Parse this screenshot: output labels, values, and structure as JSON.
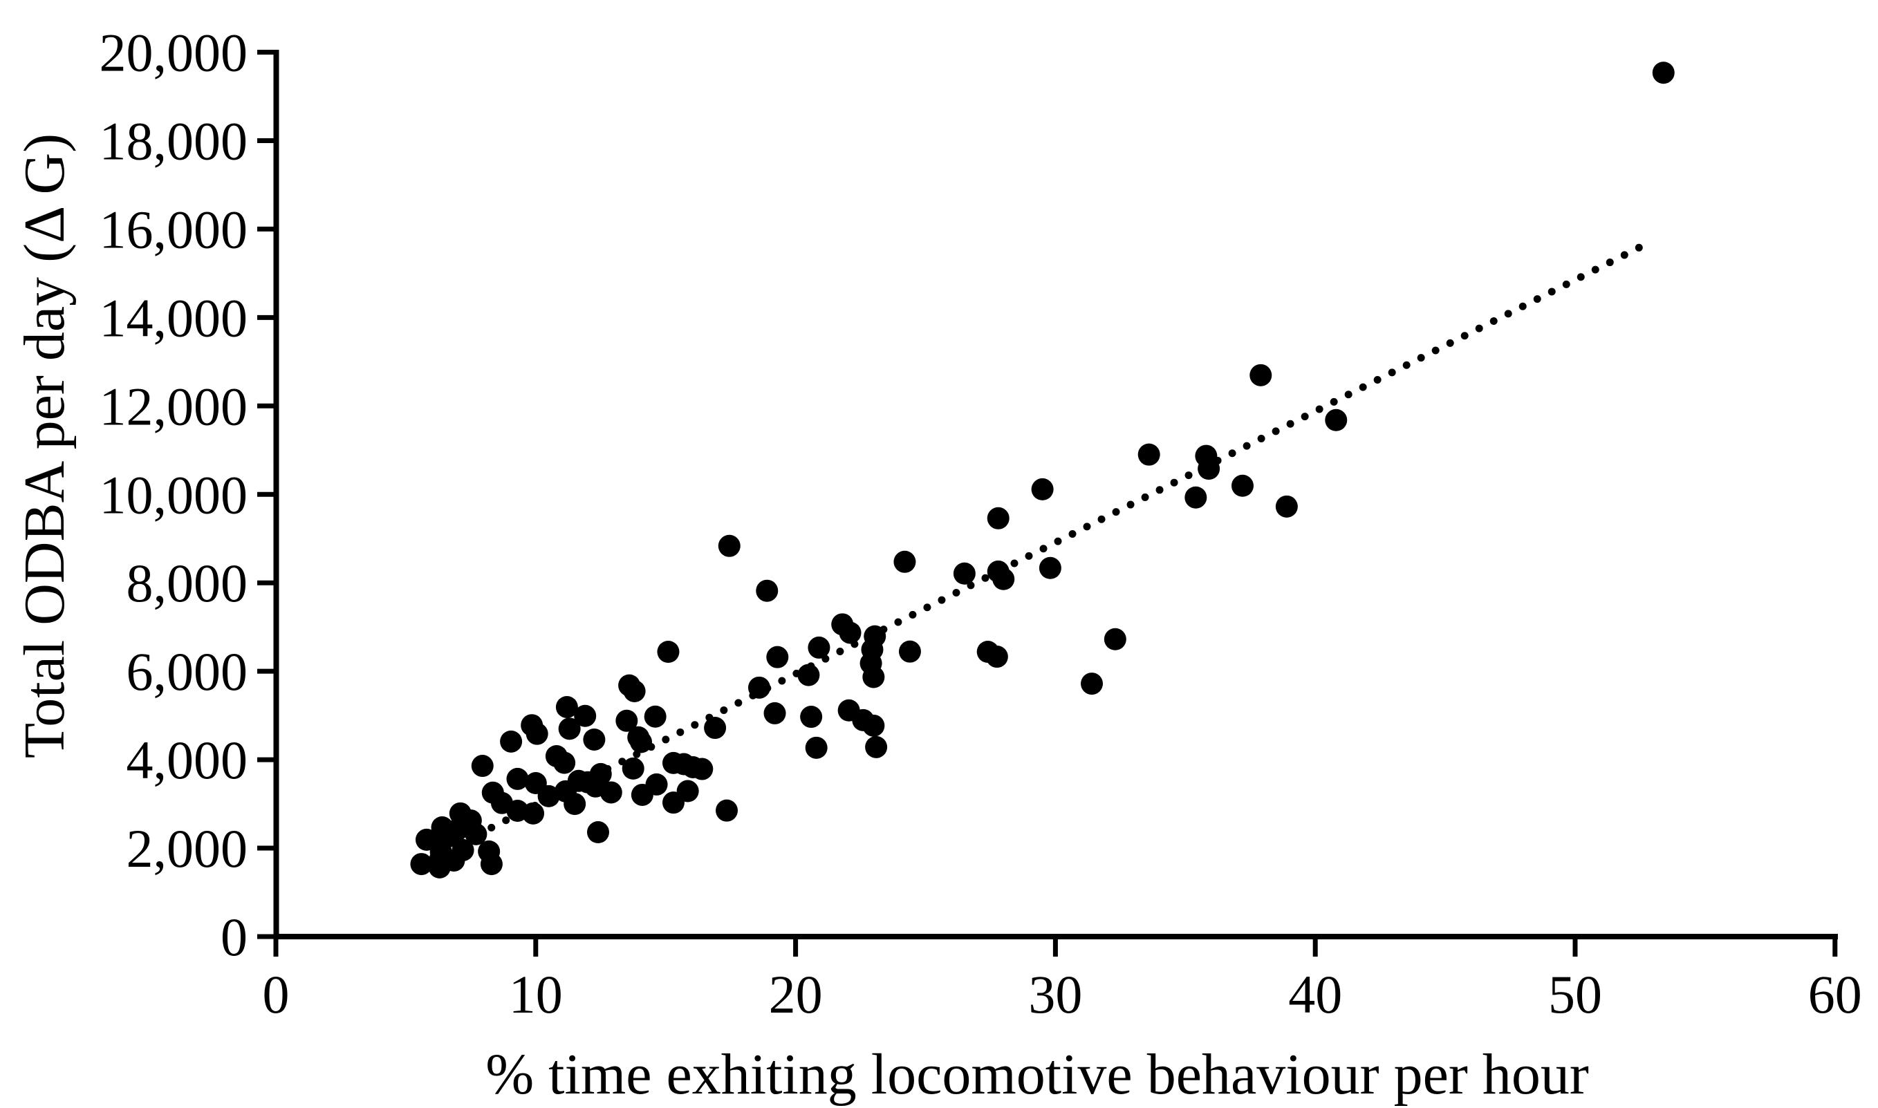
{
  "page": {
    "background_color": "#ffffff",
    "foreground_color": "#000000"
  },
  "chart_data": {
    "type": "scatter",
    "title": "",
    "xlabel": "% time exhiting locomotive behaviour per hour",
    "ylabel": "Total ODBA per day (Δ G)",
    "xlim": [
      0,
      60
    ],
    "ylim": [
      0,
      20000
    ],
    "grid": false,
    "legend": false,
    "x_ticks": [
      0,
      10,
      20,
      30,
      40,
      50,
      60
    ],
    "x_tick_labels": [
      "0",
      "10",
      "20",
      "30",
      "40",
      "50",
      "60"
    ],
    "y_ticks": [
      0,
      2000,
      4000,
      6000,
      8000,
      10000,
      12000,
      14000,
      16000,
      18000,
      20000
    ],
    "y_tick_labels": [
      "0",
      "2,000",
      "4,000",
      "6,000",
      "8,000",
      "10,000",
      "12,000",
      "14,000",
      "16,000",
      "18,000",
      "20,000"
    ],
    "marker": {
      "shape": "circle",
      "color": "#000000",
      "radius_px": 16
    },
    "trendline": {
      "style": "dotted",
      "color": "#000000",
      "slope": 297,
      "intercept": 0,
      "x_start": 5.5,
      "x_end": 52.75,
      "dot_radius_px": 5.5,
      "dot_spacing_x_units": 0.559
    },
    "points": [
      [
        5.6,
        1640
      ],
      [
        5.8,
        2190
      ],
      [
        6.3,
        1565
      ],
      [
        6.35,
        1910
      ],
      [
        6.4,
        2470
      ],
      [
        6.6,
        2255
      ],
      [
        6.85,
        1720
      ],
      [
        7.0,
        2425
      ],
      [
        7.2,
        1955
      ],
      [
        7.1,
        2785
      ],
      [
        7.5,
        2625
      ],
      [
        7.7,
        2315
      ],
      [
        7.95,
        3860
      ],
      [
        8.2,
        1925
      ],
      [
        8.3,
        1640
      ],
      [
        8.35,
        3255
      ],
      [
        8.7,
        3020
      ],
      [
        9.05,
        4410
      ],
      [
        9.3,
        2845
      ],
      [
        9.9,
        2785
      ],
      [
        9.3,
        3565
      ],
      [
        9.85,
        4780
      ],
      [
        10.05,
        4585
      ],
      [
        10.0,
        3470
      ],
      [
        10.5,
        3175
      ],
      [
        10.8,
        4080
      ],
      [
        11.1,
        3930
      ],
      [
        11.2,
        5190
      ],
      [
        11.9,
        4990
      ],
      [
        11.3,
        4700
      ],
      [
        12.25,
        4455
      ],
      [
        11.5,
        3000
      ],
      [
        11.15,
        3285
      ],
      [
        11.65,
        3520
      ],
      [
        12.0,
        3490
      ],
      [
        12.3,
        3395
      ],
      [
        12.5,
        3675
      ],
      [
        12.9,
        3260
      ],
      [
        12.4,
        2360
      ],
      [
        13.5,
        4880
      ],
      [
        13.6,
        5680
      ],
      [
        13.8,
        5550
      ],
      [
        13.95,
        4505
      ],
      [
        14.05,
        4400
      ],
      [
        13.75,
        3800
      ],
      [
        14.1,
        3205
      ],
      [
        14.6,
        4975
      ],
      [
        15.1,
        6440
      ],
      [
        14.65,
        3440
      ],
      [
        15.3,
        3030
      ],
      [
        15.85,
        3290
      ],
      [
        15.3,
        3925
      ],
      [
        15.7,
        3900
      ],
      [
        16.05,
        3830
      ],
      [
        16.4,
        3790
      ],
      [
        16.9,
        4720
      ],
      [
        17.35,
        2850
      ],
      [
        17.45,
        8835
      ],
      [
        18.9,
        7820
      ],
      [
        18.6,
        5630
      ],
      [
        19.3,
        6320
      ],
      [
        20.9,
        6535
      ],
      [
        21.8,
        7060
      ],
      [
        22.1,
        6870
      ],
      [
        23.05,
        6790
      ],
      [
        22.95,
        6490
      ],
      [
        22.9,
        6180
      ],
      [
        23.0,
        5870
      ],
      [
        24.4,
        6445
      ],
      [
        20.5,
        5915
      ],
      [
        19.2,
        5050
      ],
      [
        20.6,
        4970
      ],
      [
        22.05,
        5115
      ],
      [
        22.6,
        4895
      ],
      [
        23.0,
        4770
      ],
      [
        20.8,
        4270
      ],
      [
        23.1,
        4285
      ],
      [
        24.2,
        8475
      ],
      [
        26.5,
        8210
      ],
      [
        27.8,
        8255
      ],
      [
        28.0,
        8085
      ],
      [
        27.8,
        9460
      ],
      [
        29.8,
        8335
      ],
      [
        29.5,
        10115
      ],
      [
        27.4,
        6440
      ],
      [
        27.75,
        6330
      ],
      [
        31.4,
        5720
      ],
      [
        32.3,
        6725
      ],
      [
        33.6,
        10900
      ],
      [
        35.8,
        10870
      ],
      [
        35.9,
        10580
      ],
      [
        35.4,
        9930
      ],
      [
        37.2,
        10195
      ],
      [
        38.9,
        9725
      ],
      [
        37.9,
        12695
      ],
      [
        40.8,
        11680
      ],
      [
        53.4,
        19535
      ]
    ]
  }
}
